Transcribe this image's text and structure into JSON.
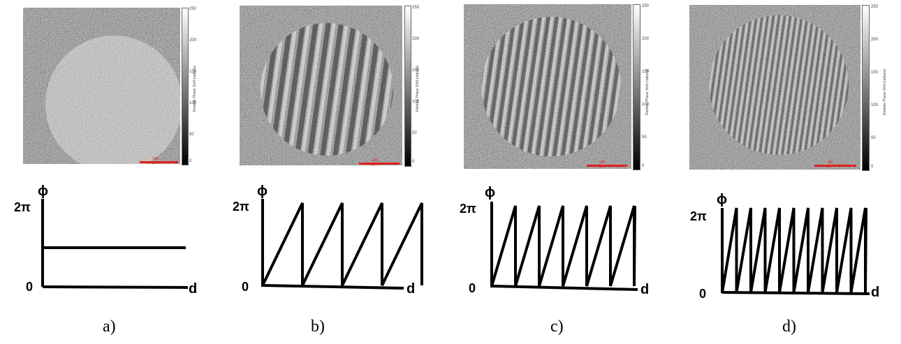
{
  "panels": [
    {
      "id": "a",
      "caption": "a)",
      "colorbar": {
        "ticks": [
          "250",
          "200",
          "150",
          "100",
          "50",
          "0"
        ],
        "label": "Relative Phase Shift (radians)"
      },
      "scalebar": "100 µm",
      "graph": {
        "y_top": "2π",
        "y_zero": "0",
        "y_axis": "ϕ",
        "x_axis": "d",
        "type": "constant",
        "teeth": 0
      }
    },
    {
      "id": "b",
      "caption": "b)",
      "colorbar": {
        "ticks": [
          "250",
          "200",
          "150",
          "100",
          "50",
          "0"
        ],
        "label": "Relative Phase Shift (radians)"
      },
      "scalebar": "100 µm",
      "graph": {
        "y_top": "2π",
        "y_zero": "0",
        "y_axis": "ϕ",
        "x_axis": "d",
        "type": "sawtooth",
        "teeth": 4
      }
    },
    {
      "id": "c",
      "caption": "c)",
      "colorbar": {
        "ticks": [
          "250",
          "200",
          "150",
          "100",
          "50",
          "0"
        ],
        "label": "Relative Phase Shift (radians)"
      },
      "scalebar": "100 µm",
      "graph": {
        "y_top": "2π",
        "y_zero": "0",
        "y_axis": "ϕ",
        "x_axis": "d",
        "type": "sawtooth",
        "teeth": 6
      }
    },
    {
      "id": "d",
      "caption": "d)",
      "colorbar": {
        "ticks": [
          "250",
          "200",
          "150",
          "100",
          "50",
          "0"
        ],
        "label": "Relative Phase Shift (radians)"
      },
      "scalebar": "100 µm",
      "graph": {
        "y_top": "2π",
        "y_zero": "0",
        "y_axis": "ϕ",
        "x_axis": "d",
        "type": "sawtooth",
        "teeth": 10
      }
    }
  ],
  "colors": {
    "axis": "#000000",
    "scalebar": "#e0201c",
    "noise_bg": "#8a8a8a"
  }
}
